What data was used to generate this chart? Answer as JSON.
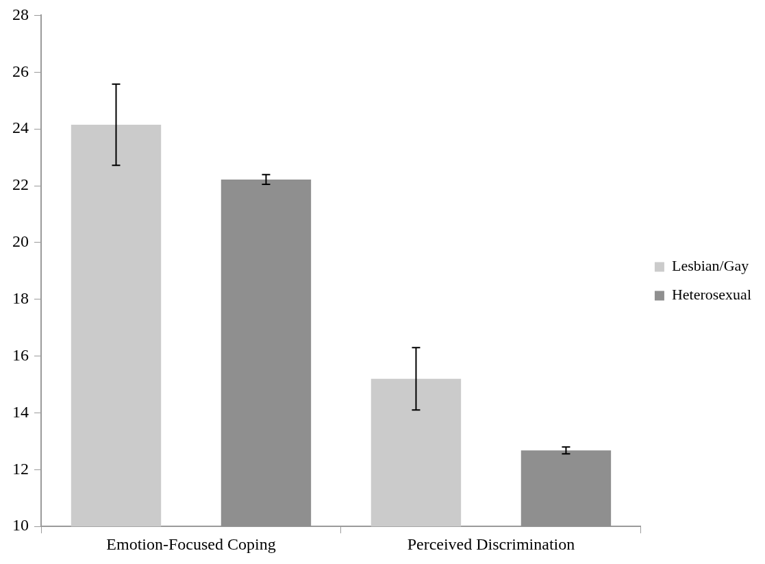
{
  "chart_data": {
    "type": "bar",
    "categories": [
      "Emotion-Focused Coping",
      "Perceived Discrimination"
    ],
    "series": [
      {
        "name": "Lesbian/Gay",
        "color": "#cbcbcb",
        "values": [
          24.15,
          15.2
        ],
        "errors": [
          1.43,
          1.1
        ]
      },
      {
        "name": "Heterosexual",
        "color": "#8f8f8f",
        "values": [
          22.22,
          12.68
        ],
        "errors": [
          0.17,
          0.12
        ]
      }
    ],
    "ylim": [
      10,
      28
    ],
    "yticks": [
      10,
      12,
      14,
      16,
      18,
      20,
      22,
      24,
      26,
      28
    ],
    "grid": false,
    "legend": "right"
  }
}
